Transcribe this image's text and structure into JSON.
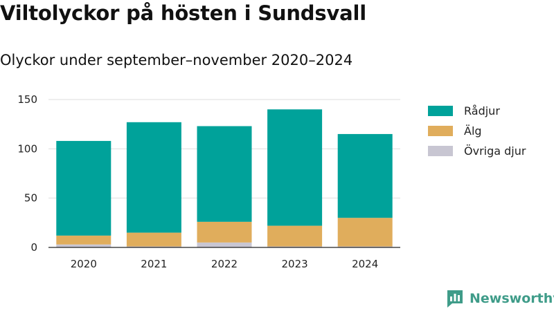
{
  "title": "Viltolyckor på hösten i Sundsvall",
  "subtitle": "Olyckor under september–november 2020–2024",
  "brand": {
    "name": "Newsworthy",
    "icon": "newsworthy-bar-chart-logo"
  },
  "chart_data": {
    "type": "bar",
    "stacked": true,
    "categories": [
      "2020",
      "2021",
      "2022",
      "2023",
      "2024"
    ],
    "series": [
      {
        "name": "Övriga djur",
        "color": "#c8c6d2",
        "values": [
          3,
          1,
          5,
          1,
          1
        ]
      },
      {
        "name": "Älg",
        "color": "#e0ad5c",
        "values": [
          9,
          14,
          21,
          21,
          29
        ]
      },
      {
        "name": "Rådjur",
        "color": "#00a29a",
        "values": [
          96,
          112,
          97,
          118,
          85
        ]
      }
    ],
    "ylim": [
      0,
      150
    ],
    "yticks": [
      0,
      50,
      100,
      150
    ],
    "xlabel": "",
    "ylabel": "",
    "grid": true,
    "legend_position": "right",
    "legend_order": [
      "Rådjur",
      "Älg",
      "Övriga djur"
    ]
  }
}
